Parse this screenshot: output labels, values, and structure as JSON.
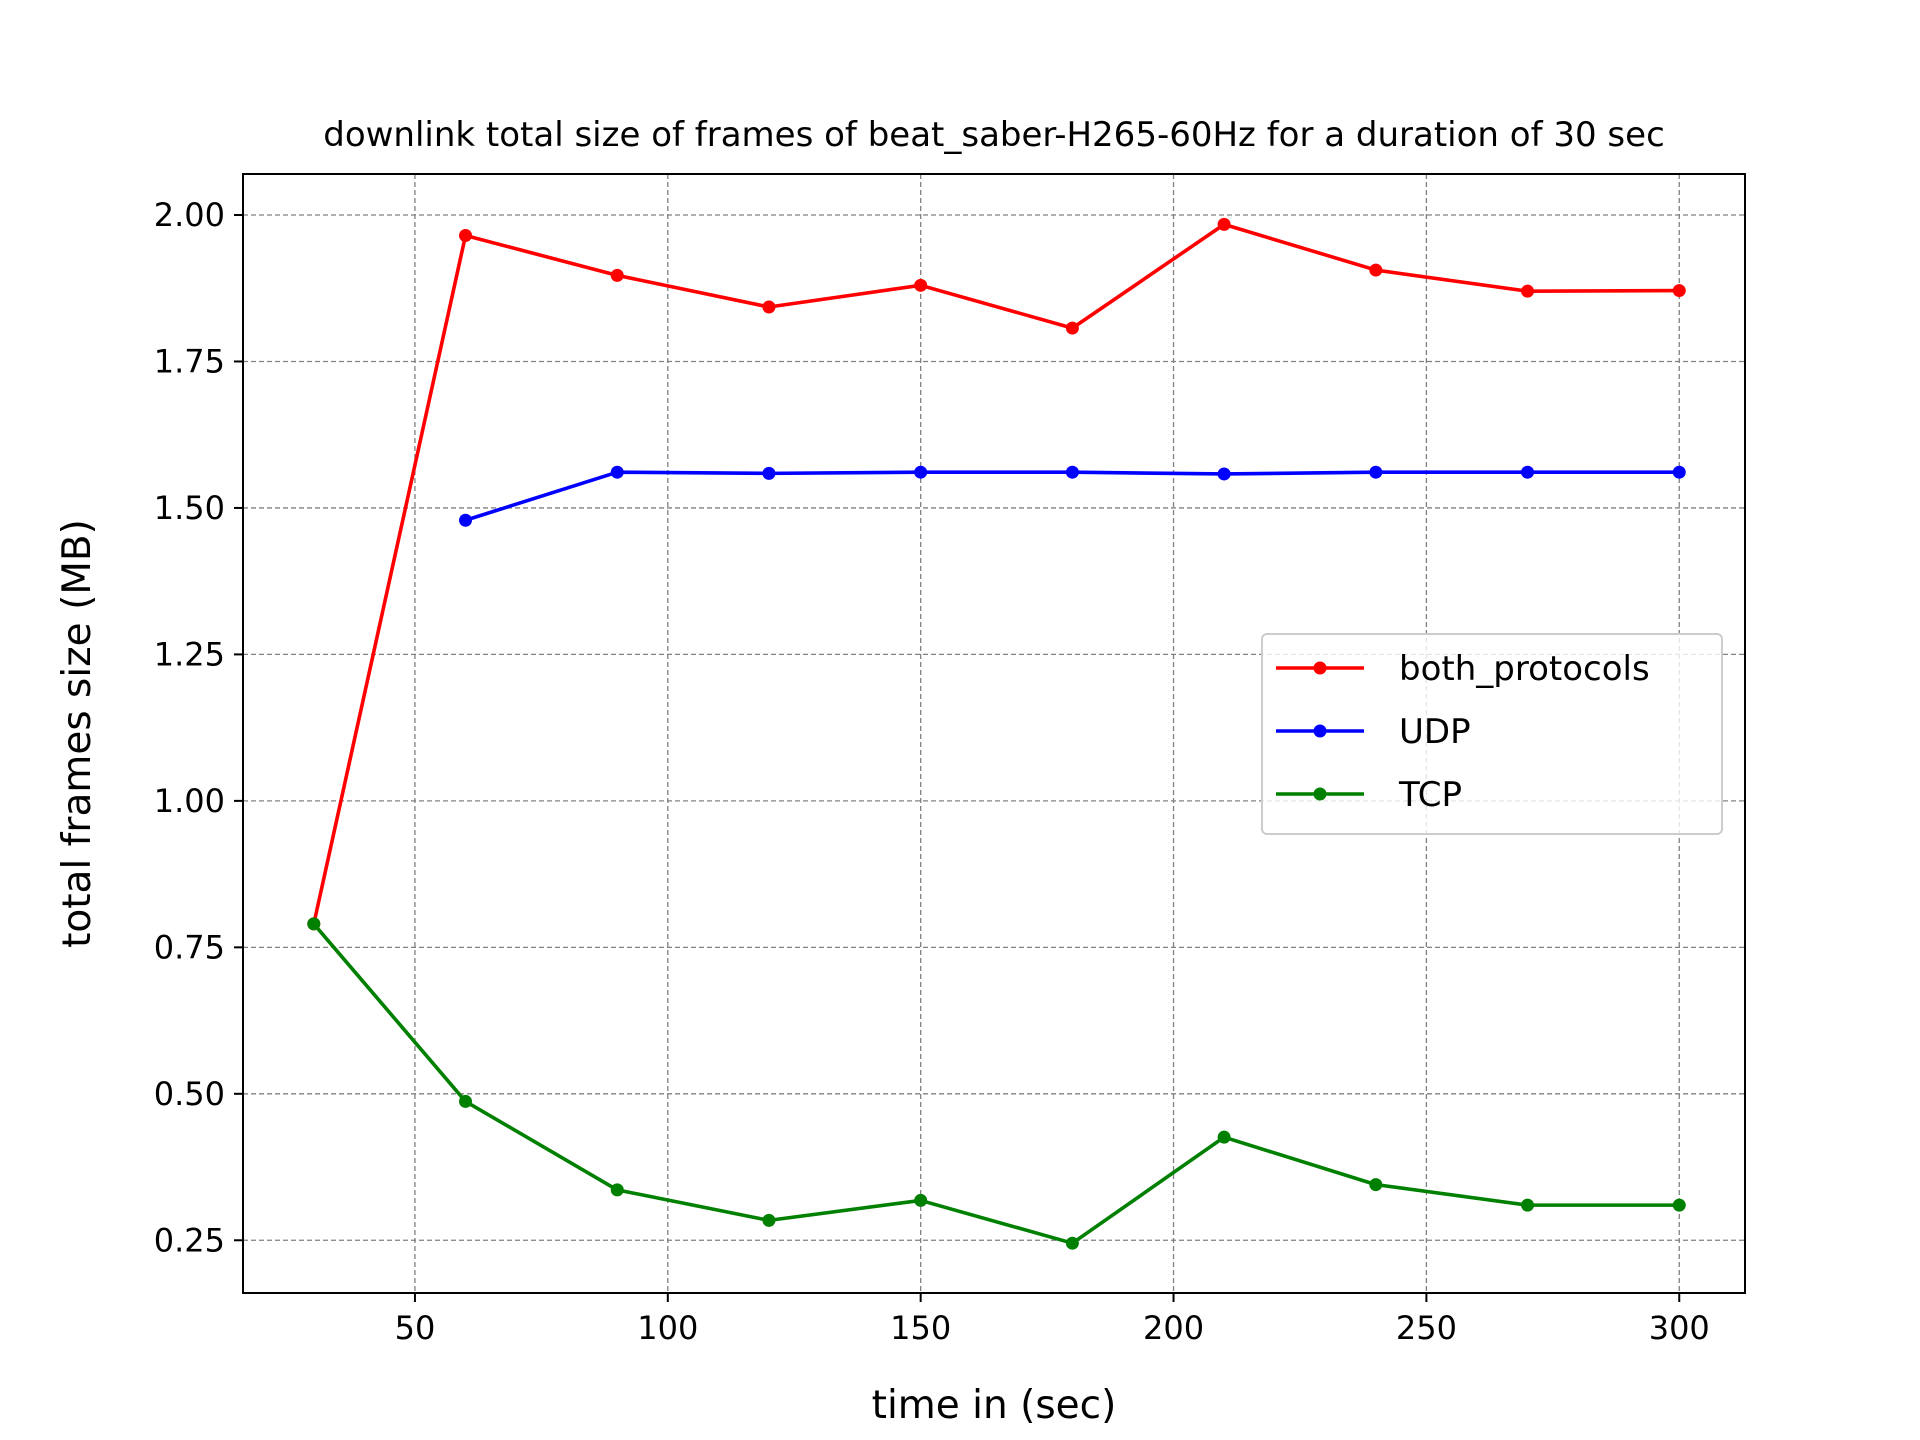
{
  "chart_data": {
    "type": "line",
    "title": "downlink total size of frames of beat_saber-H265-60Hz for a duration of 30 sec",
    "xlabel": "time in (sec)",
    "ylabel": "total frames size (MB)",
    "xlim": [
      16,
      313
    ],
    "ylim": [
      0.16,
      2.07
    ],
    "xticks": [
      50,
      100,
      150,
      200,
      250,
      300
    ],
    "xtick_labels": [
      "50",
      "100",
      "150",
      "200",
      "250",
      "300"
    ],
    "yticks": [
      0.25,
      0.5,
      0.75,
      1.0,
      1.25,
      1.5,
      1.75,
      2.0
    ],
    "ytick_labels": [
      "0.25",
      "0.50",
      "0.75",
      "1.00",
      "1.25",
      "1.50",
      "1.75",
      "2.00"
    ],
    "grid": true,
    "legend_position": "center-right",
    "series": [
      {
        "name": "both_protocols",
        "color": "#ff0000",
        "x": [
          30,
          60,
          90,
          120,
          150,
          180,
          210,
          240,
          270,
          300
        ],
        "y": [
          0.79,
          1.965,
          1.897,
          1.843,
          1.88,
          1.807,
          1.984,
          1.906,
          1.87,
          1.871
        ]
      },
      {
        "name": "UDP",
        "color": "#0000ff",
        "x": [
          60,
          90,
          120,
          150,
          180,
          210,
          240,
          270,
          300
        ],
        "y": [
          1.479,
          1.561,
          1.559,
          1.561,
          1.561,
          1.558,
          1.561,
          1.561,
          1.561
        ]
      },
      {
        "name": "TCP",
        "color": "#008000",
        "x": [
          30,
          60,
          90,
          120,
          150,
          180,
          210,
          240,
          270,
          300
        ],
        "y": [
          0.79,
          0.487,
          0.336,
          0.284,
          0.318,
          0.245,
          0.426,
          0.345,
          0.31,
          0.31
        ]
      }
    ]
  }
}
